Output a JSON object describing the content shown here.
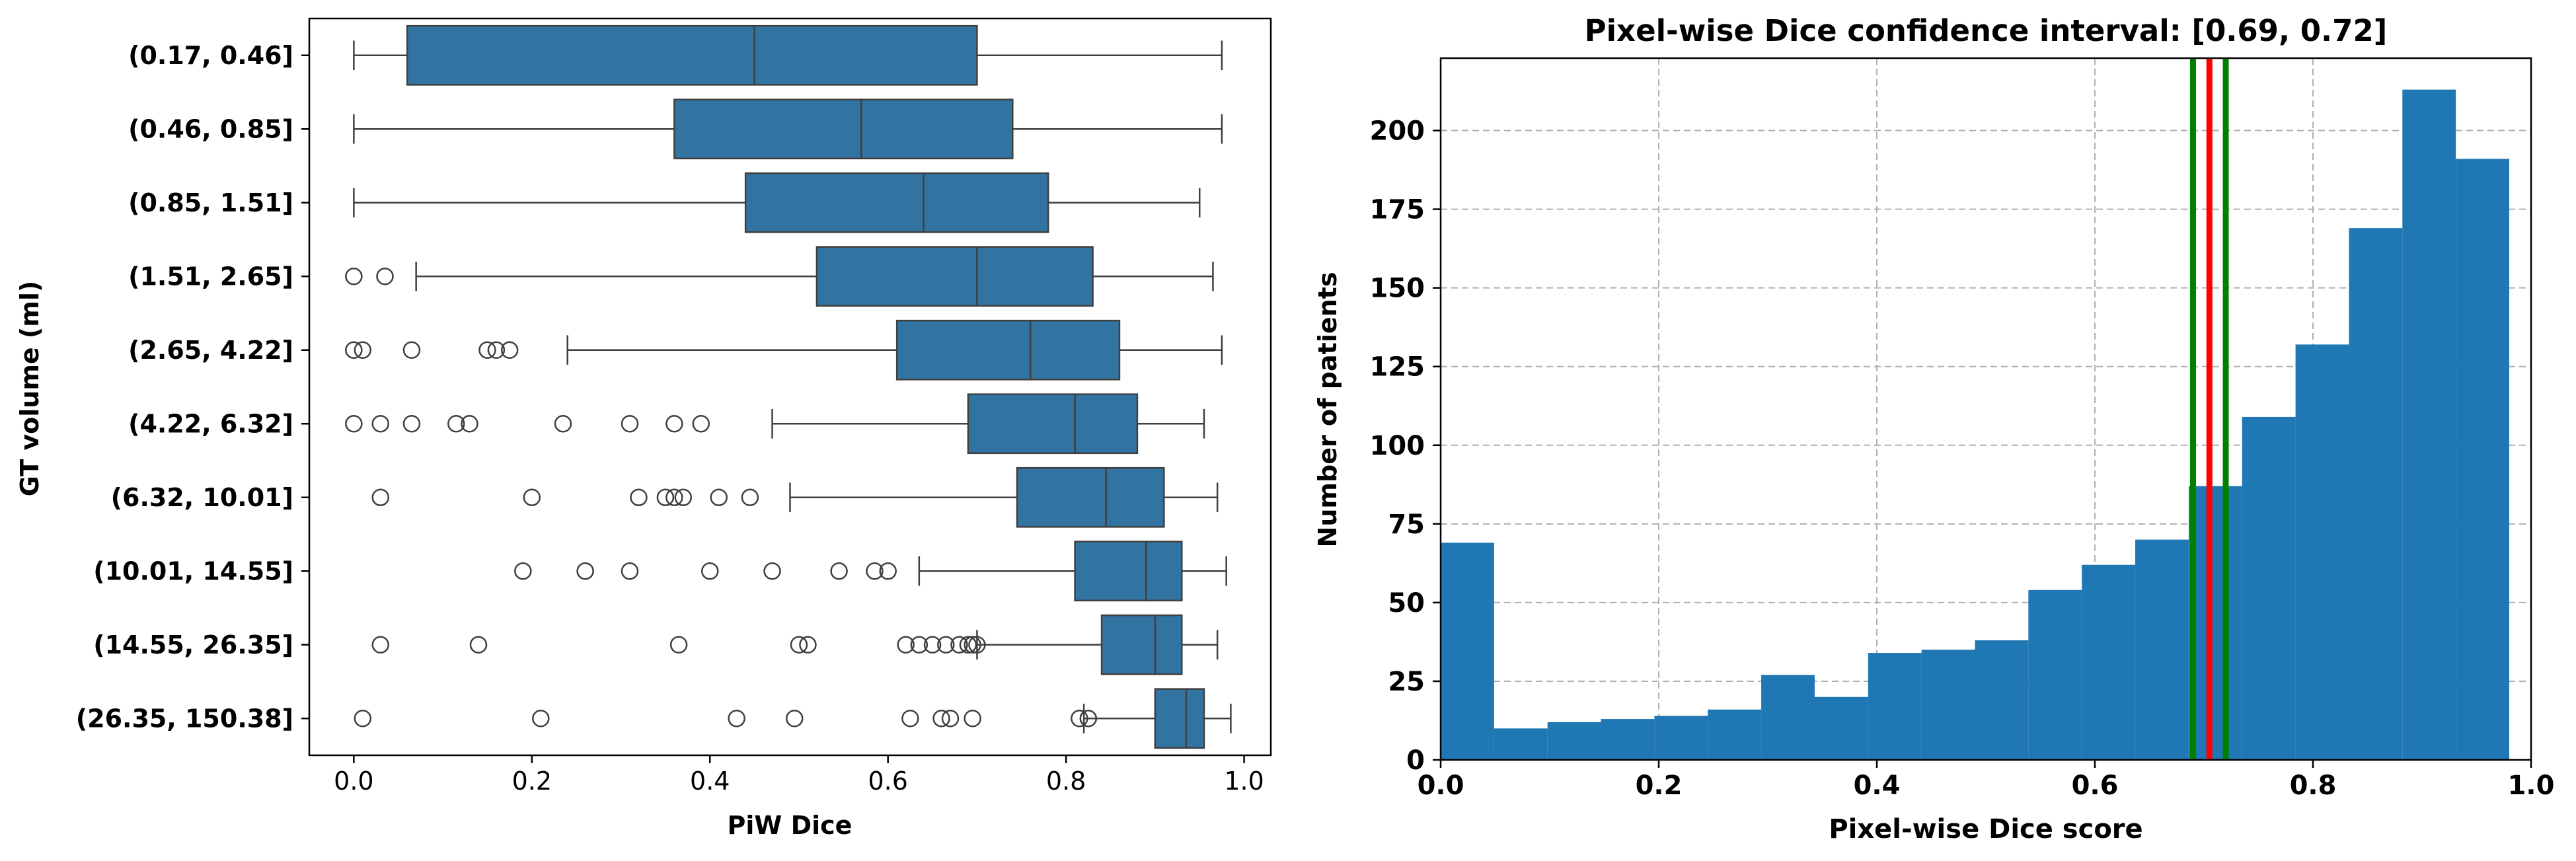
{
  "chart_data": [
    {
      "type": "box",
      "title": "",
      "xlabel": "PiW Dice",
      "ylabel": "GT volume (ml)",
      "xlim": [
        -0.05,
        1.03
      ],
      "xticks": [
        "0.0",
        "0.2",
        "0.4",
        "0.6",
        "0.8",
        "1.0"
      ],
      "box_color": "#3274a1",
      "categories": [
        "(0.17, 0.46]",
        "(0.46, 0.85]",
        "(0.85, 1.51]",
        "(1.51, 2.65]",
        "(2.65, 4.22]",
        "(4.22, 6.32]",
        "(6.32, 10.01]",
        "(10.01, 14.55]",
        "(14.55, 26.35]",
        "(26.35, 150.38]"
      ],
      "boxes": [
        {
          "whisker_low": 0.0,
          "q1": 0.06,
          "median": 0.45,
          "q3": 0.7,
          "whisker_high": 0.975,
          "outliers": []
        },
        {
          "whisker_low": 0.0,
          "q1": 0.36,
          "median": 0.57,
          "q3": 0.74,
          "whisker_high": 0.975,
          "outliers": []
        },
        {
          "whisker_low": 0.0,
          "q1": 0.44,
          "median": 0.64,
          "q3": 0.78,
          "whisker_high": 0.95,
          "outliers": []
        },
        {
          "whisker_low": 0.07,
          "q1": 0.52,
          "median": 0.7,
          "q3": 0.83,
          "whisker_high": 0.965,
          "outliers": [
            0.0,
            0.035
          ]
        },
        {
          "whisker_low": 0.24,
          "q1": 0.61,
          "median": 0.76,
          "q3": 0.86,
          "whisker_high": 0.975,
          "outliers": [
            0.0,
            0.01,
            0.065,
            0.15,
            0.16,
            0.175
          ]
        },
        {
          "whisker_low": 0.47,
          "q1": 0.69,
          "median": 0.81,
          "q3": 0.88,
          "whisker_high": 0.955,
          "outliers": [
            0.0,
            0.03,
            0.065,
            0.115,
            0.13,
            0.235,
            0.31,
            0.36,
            0.39
          ]
        },
        {
          "whisker_low": 0.49,
          "q1": 0.745,
          "median": 0.845,
          "q3": 0.91,
          "whisker_high": 0.97,
          "outliers": [
            0.03,
            0.2,
            0.32,
            0.35,
            0.36,
            0.37,
            0.41,
            0.445
          ]
        },
        {
          "whisker_low": 0.635,
          "q1": 0.81,
          "median": 0.89,
          "q3": 0.93,
          "whisker_high": 0.98,
          "outliers": [
            0.19,
            0.26,
            0.31,
            0.4,
            0.47,
            0.545,
            0.585,
            0.6
          ]
        },
        {
          "whisker_low": 0.7,
          "q1": 0.84,
          "median": 0.9,
          "q3": 0.93,
          "whisker_high": 0.97,
          "outliers": [
            0.03,
            0.14,
            0.365,
            0.5,
            0.51,
            0.62,
            0.635,
            0.65,
            0.665,
            0.68,
            0.69,
            0.695,
            0.7
          ]
        },
        {
          "whisker_low": 0.82,
          "q1": 0.9,
          "median": 0.935,
          "q3": 0.955,
          "whisker_high": 0.985,
          "outliers": [
            0.01,
            0.21,
            0.43,
            0.495,
            0.625,
            0.66,
            0.67,
            0.695,
            0.815,
            0.825
          ]
        }
      ]
    },
    {
      "type": "bar",
      "title": "Pixel-wise Dice confidence interval: [0.69, 0.72]",
      "xlabel": "Pixel-wise Dice score",
      "ylabel": "Number of patients",
      "xlim": [
        0.0,
        1.0
      ],
      "ylim": [
        0,
        223
      ],
      "xticks": [
        "0.0",
        "0.2",
        "0.4",
        "0.6",
        "0.8",
        "1.0"
      ],
      "yticks": [
        "0",
        "25",
        "50",
        "75",
        "100",
        "125",
        "150",
        "175",
        "200"
      ],
      "grid": true,
      "bar_color": "#1f77b4",
      "bin_edges": [
        0.0,
        0.049,
        0.098,
        0.147,
        0.196,
        0.245,
        0.294,
        0.343,
        0.392,
        0.441,
        0.49,
        0.539,
        0.588,
        0.637,
        0.686,
        0.735,
        0.784,
        0.833,
        0.882,
        0.931,
        0.98
      ],
      "values": [
        69,
        10,
        12,
        13,
        14,
        16,
        27,
        20,
        34,
        35,
        38,
        54,
        62,
        70,
        87,
        109,
        132,
        169,
        213,
        191
      ],
      "vlines": [
        {
          "x": 0.69,
          "color": "#008000"
        },
        {
          "x": 0.705,
          "color": "#ff0000"
        },
        {
          "x": 0.72,
          "color": "#008000"
        }
      ]
    }
  ]
}
